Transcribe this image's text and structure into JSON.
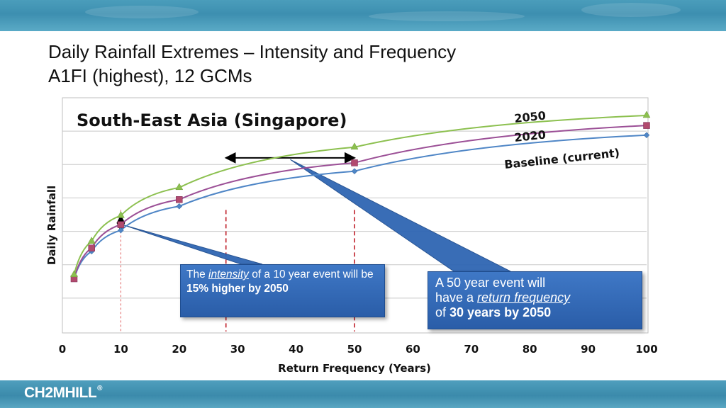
{
  "slide": {
    "title_line1": "Daily Rainfall Extremes – Intensity and Frequency",
    "title_line2": "A1FI (highest), 12 GCMs",
    "logo": "CH2MHILL",
    "logo_mark": "®"
  },
  "colors": {
    "baseline": "#4f86c6",
    "y2020": "#9b4f96",
    "y2050": "#8cc04f",
    "callout": "#2f66b3",
    "grid": "#c8c8c8",
    "marker_2020": "#c0504d"
  },
  "chart_data": {
    "type": "line",
    "title": "South-East Asia (Singapore)",
    "xlabel": "Return Frequency (Years)",
    "ylabel": "Daily Rainfall",
    "xlim": [
      0,
      100
    ],
    "ylim": [
      0,
      7
    ],
    "x_ticks": [
      0,
      10,
      20,
      30,
      40,
      50,
      60,
      70,
      80,
      90,
      100
    ],
    "grid": "horizontal",
    "x": [
      2,
      5,
      10,
      20,
      50,
      100
    ],
    "series": [
      {
        "name": "Baseline (current)",
        "values": [
          1.58,
          2.4,
          3.03,
          3.75,
          4.8,
          5.88
        ],
        "marker": "diamond",
        "color": "#4f86c6"
      },
      {
        "name": "2020",
        "values": [
          1.58,
          2.5,
          3.2,
          3.95,
          5.05,
          6.17
        ],
        "marker": "square",
        "color": "#9b4f96"
      },
      {
        "name": "2050",
        "values": [
          1.7,
          2.7,
          3.47,
          4.31,
          5.52,
          6.47
        ],
        "marker": "triangle",
        "color": "#8cc04f"
      }
    ],
    "annotations": [
      {
        "text_before": "The ",
        "text_em": "intensity",
        "text_mid": " of a 10 year event will be ",
        "text_bold": "15% higher by 2050"
      },
      {
        "line1": "A 50 year event will",
        "line2_before": "have a ",
        "line2_em": "return frequency",
        "line3_before": "of ",
        "line3_bold": "30 years by 2050"
      }
    ],
    "reference_lines": {
      "vertical": [
        10,
        28,
        50
      ],
      "horizontal_arrow": {
        "from": 28,
        "to": 50,
        "y": 5.2
      },
      "vertical_arrow": {
        "x": 10,
        "from": 3.03,
        "to": 3.47
      }
    }
  }
}
